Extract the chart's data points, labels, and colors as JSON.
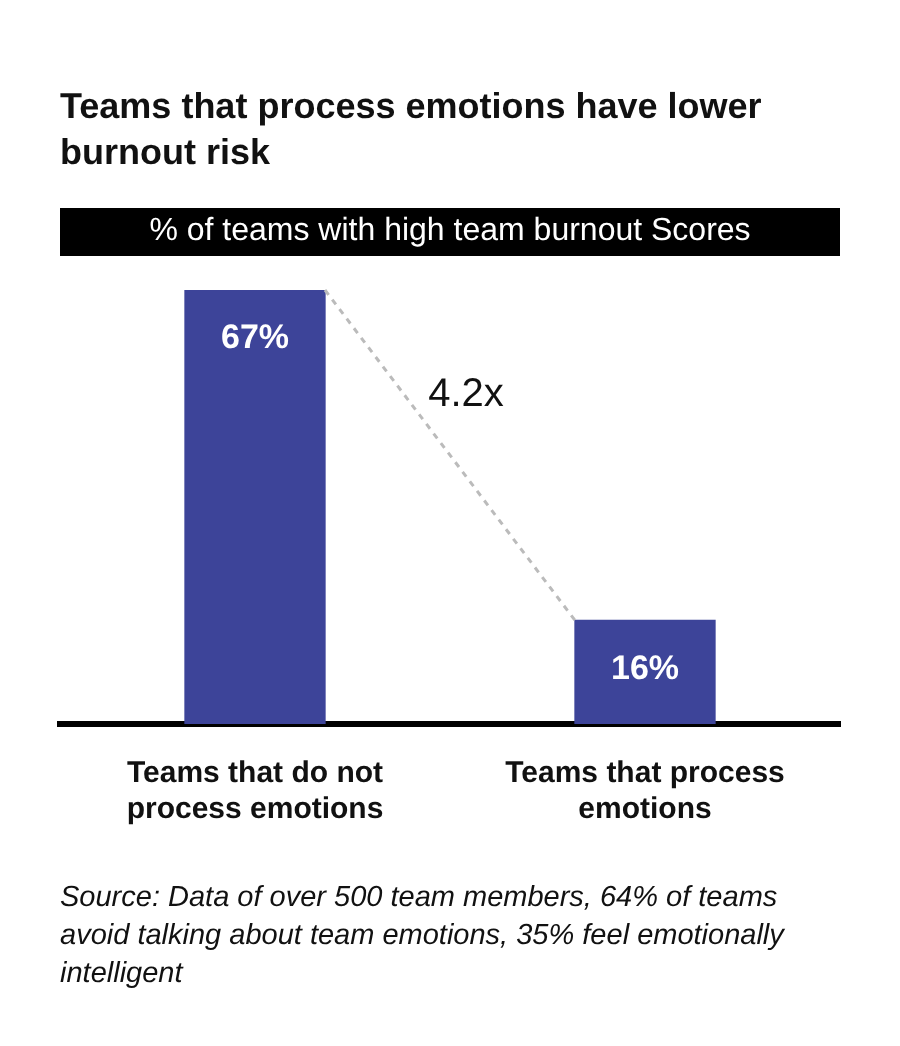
{
  "chart_data": {
    "type": "bar",
    "title": "Teams that process emotions have lower burnout risk",
    "subtitle": "% of teams with high team burnout Scores",
    "categories": [
      "Teams that do not process emotions",
      "Teams that process emotions"
    ],
    "values": [
      67,
      16
    ],
    "color": "#3d4499",
    "value_labels": [
      "67%",
      "16%"
    ],
    "ylim": [
      0,
      67
    ],
    "tick_labels": "x",
    "grid": false,
    "legend": false,
    "annotations": [
      "4.2x",
      "Source: Data of over 500 team members, 64% of teams avoid talking about team emotions, 35% feel emotionally intelligent"
    ]
  }
}
